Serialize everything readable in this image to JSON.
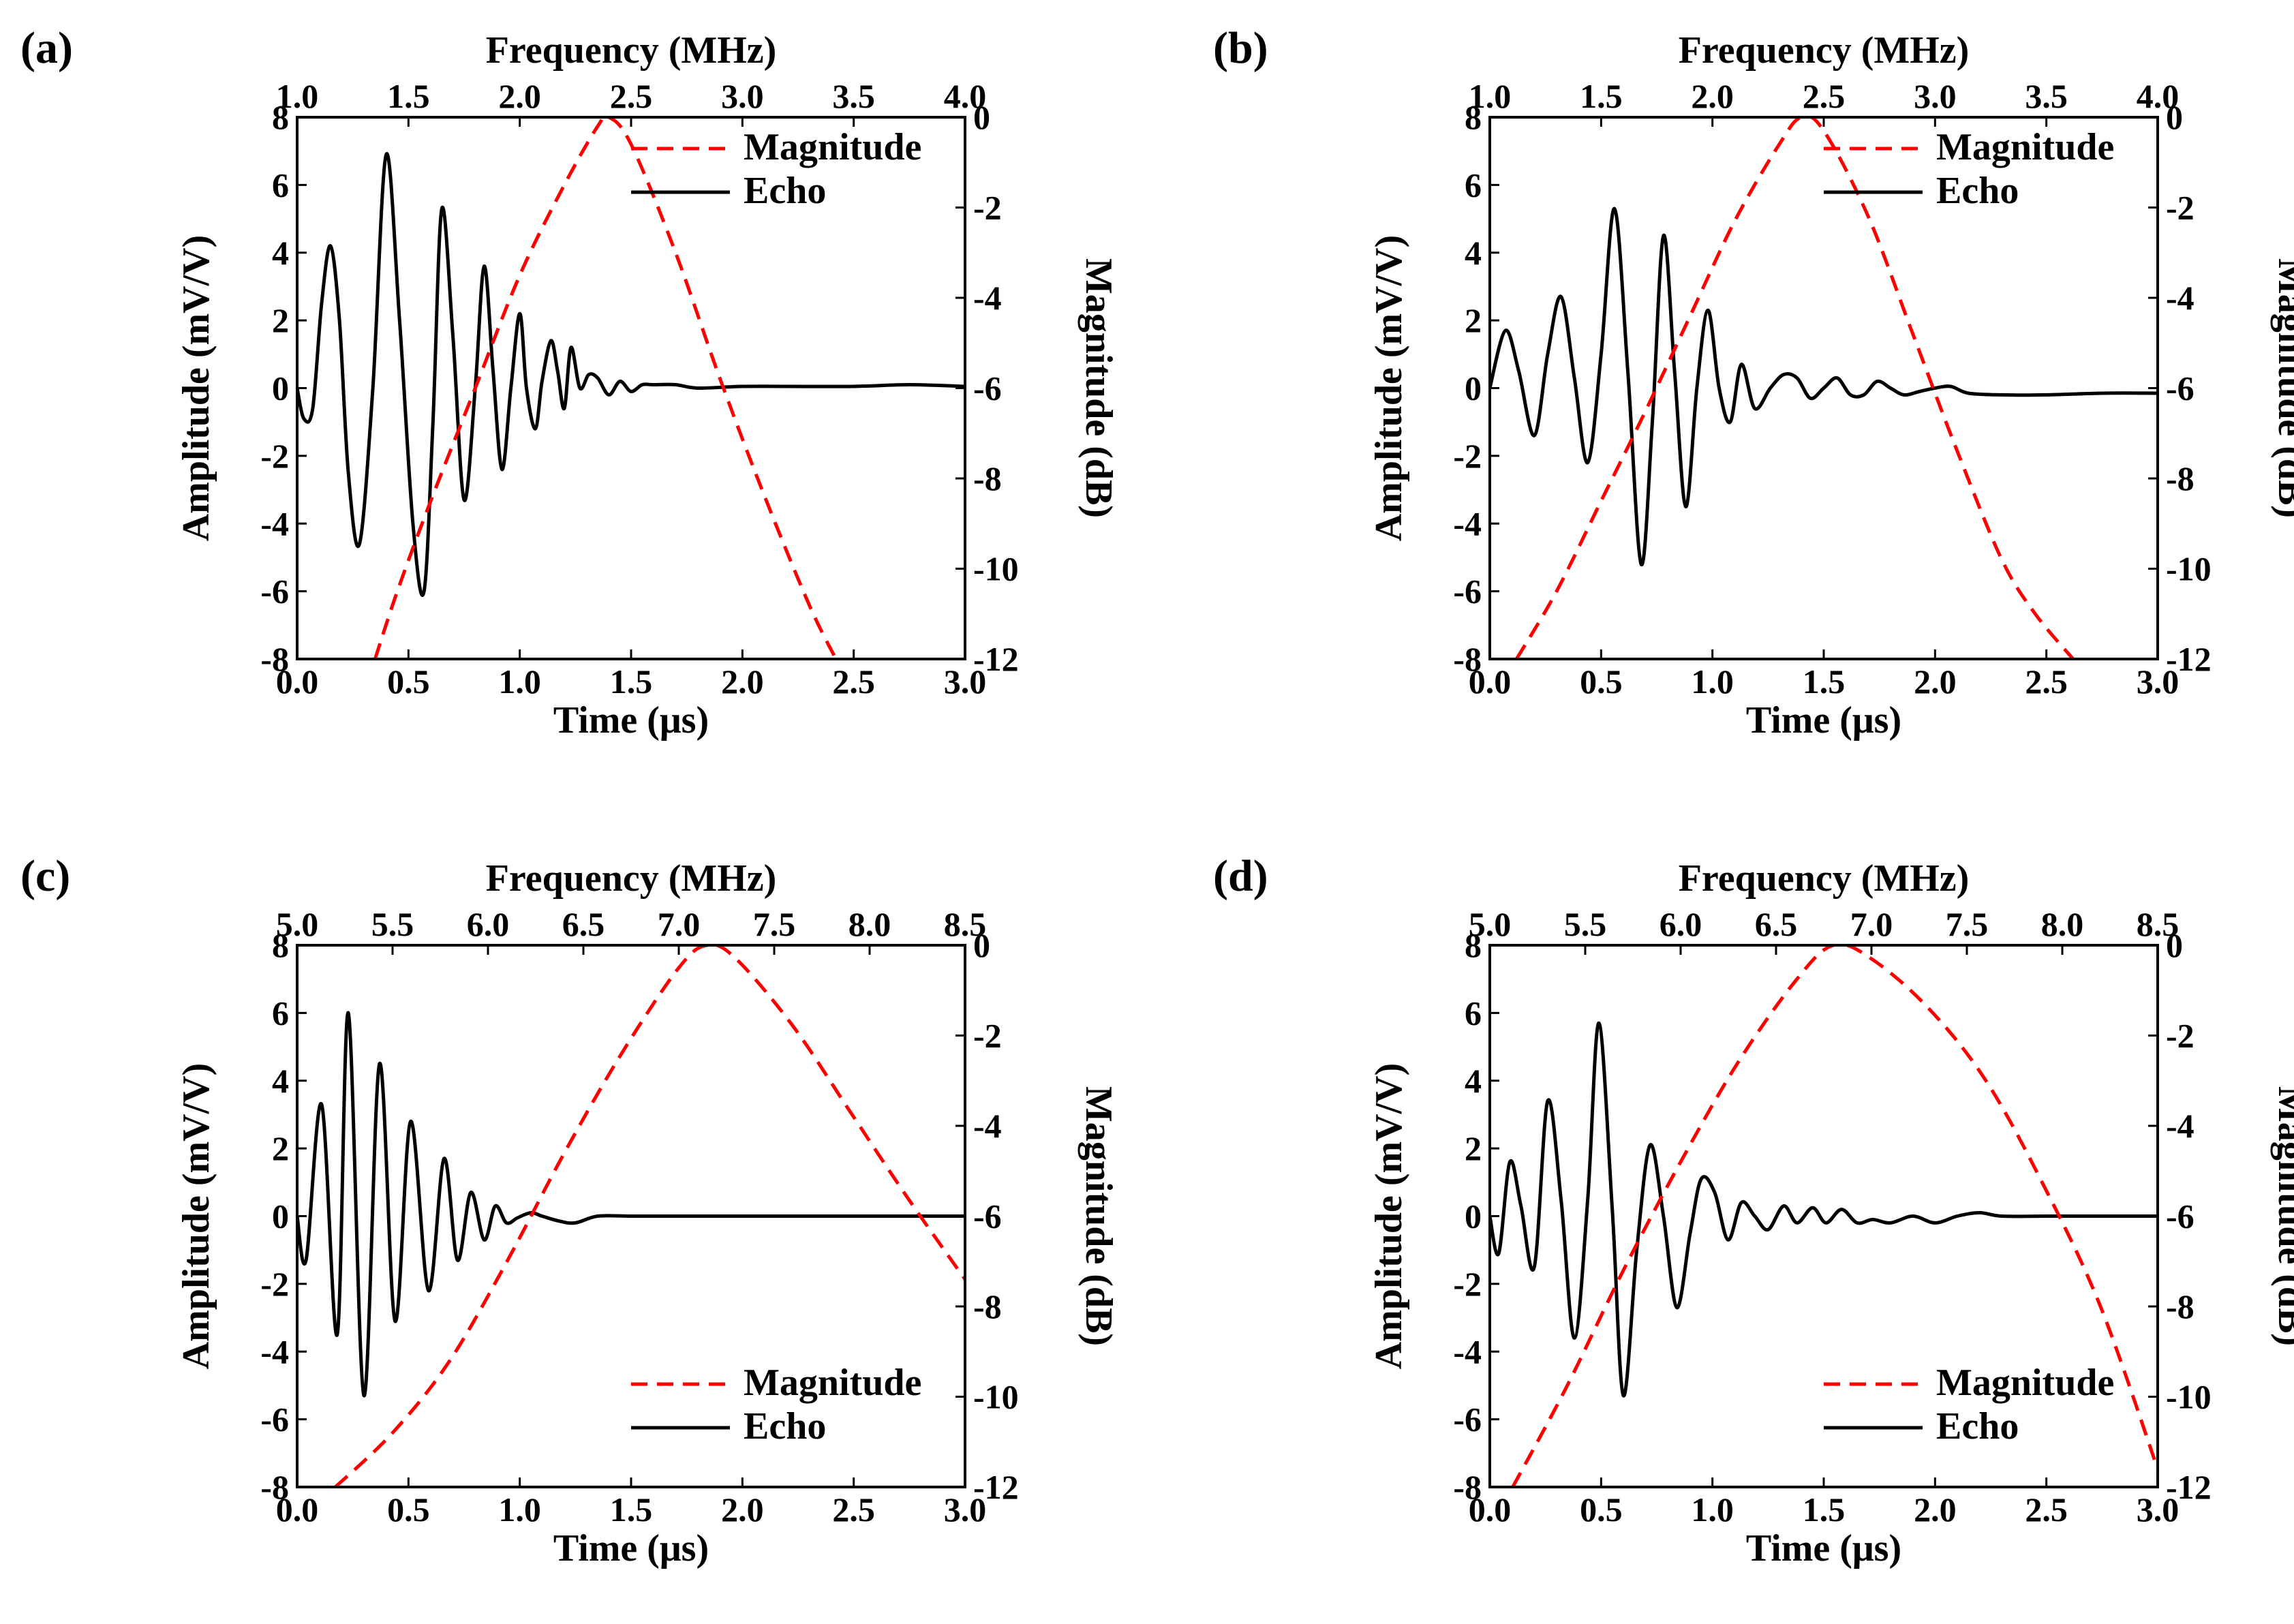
{
  "chart_data": [
    {
      "type": "line",
      "panel_label": "(a)",
      "xlabel": "Time (μs)",
      "ylabel": "Amplitude (mV/V)",
      "x2label": "Frequency (MHz)",
      "y2label": "Magnitude (dB)",
      "xlim": [
        0,
        3
      ],
      "ylim": [
        -8,
        8
      ],
      "x2lim": [
        1,
        4
      ],
      "y2lim": [
        -12,
        0
      ],
      "xticks": [
        "0.0",
        "0.5",
        "1.0",
        "1.5",
        "2.0",
        "2.5",
        "3.0"
      ],
      "yticks": [
        "-8",
        "-6",
        "-4",
        "-2",
        "0",
        "2",
        "4",
        "6",
        "8"
      ],
      "x2ticks": [
        "1.0",
        "1.5",
        "2.0",
        "2.5",
        "3.0",
        "3.5",
        "4.0"
      ],
      "y2ticks": [
        "-12",
        "-10",
        "-8",
        "-6",
        "-4",
        "-2",
        "0"
      ],
      "legend_position": "top-right",
      "series": [
        {
          "name": "Echo",
          "axis": "primary",
          "color": "#000000",
          "style": "solid",
          "x": [
            0.0,
            0.03,
            0.07,
            0.11,
            0.15,
            0.19,
            0.23,
            0.28,
            0.34,
            0.4,
            0.46,
            0.52,
            0.57,
            0.61,
            0.65,
            0.7,
            0.75,
            0.8,
            0.84,
            0.88,
            0.92,
            0.96,
            1.0,
            1.03,
            1.07,
            1.1,
            1.14,
            1.17,
            1.2,
            1.23,
            1.27,
            1.31,
            1.35,
            1.4,
            1.45,
            1.5,
            1.55,
            1.6,
            1.7,
            1.8,
            2.0,
            2.2,
            2.5,
            2.75,
            3.0
          ],
          "y": [
            0,
            -0.9,
            -0.6,
            2.5,
            4.2,
            2.0,
            -2.5,
            -4.6,
            0,
            6.9,
            2.0,
            -4.0,
            -6.0,
            -1.0,
            5.3,
            1.5,
            -3.3,
            0,
            3.6,
            0.5,
            -2.4,
            0,
            2.2,
            0,
            -1.2,
            0.2,
            1.4,
            0.5,
            -0.6,
            1.2,
            0,
            0.4,
            0.3,
            -0.2,
            0.2,
            -0.1,
            0.1,
            0.1,
            0.1,
            0,
            0.05,
            0.05,
            0.05,
            0.1,
            0.05
          ]
        },
        {
          "name": "Magnitude",
          "axis": "secondary",
          "color": "#ff0000",
          "style": "dashed",
          "x": [
            1.35,
            1.45,
            1.6,
            1.8,
            2.0,
            2.2,
            2.35,
            2.4,
            2.5,
            2.7,
            2.9,
            3.1,
            3.3,
            3.42
          ],
          "y": [
            -12,
            -10.5,
            -8.5,
            -6.0,
            -3.5,
            -1.5,
            -0.2,
            0,
            -0.6,
            -3.0,
            -5.8,
            -8.4,
            -10.8,
            -12
          ]
        }
      ]
    },
    {
      "type": "line",
      "panel_label": "(b)",
      "xlabel": "Time (μs)",
      "ylabel": "Amplitude (mV/V)",
      "x2label": "Frequency (MHz)",
      "y2label": "Magnitude (dB)",
      "xlim": [
        0,
        3
      ],
      "ylim": [
        -8,
        8
      ],
      "x2lim": [
        1,
        4
      ],
      "y2lim": [
        -12,
        0
      ],
      "xticks": [
        "0.0",
        "0.5",
        "1.0",
        "1.5",
        "2.0",
        "2.5",
        "3.0"
      ],
      "yticks": [
        "-8",
        "-6",
        "-4",
        "-2",
        "0",
        "2",
        "4",
        "6",
        "8"
      ],
      "x2ticks": [
        "1.0",
        "1.5",
        "2.0",
        "2.5",
        "3.0",
        "3.5",
        "4.0"
      ],
      "y2ticks": [
        "-12",
        "-10",
        "-8",
        "-6",
        "-4",
        "-2",
        "0"
      ],
      "legend_position": "top-right",
      "series": [
        {
          "name": "Echo",
          "axis": "primary",
          "color": "#000000",
          "style": "solid",
          "x": [
            0.0,
            0.07,
            0.13,
            0.2,
            0.26,
            0.32,
            0.38,
            0.44,
            0.5,
            0.56,
            0.62,
            0.68,
            0.73,
            0.78,
            0.83,
            0.88,
            0.93,
            0.98,
            1.03,
            1.08,
            1.13,
            1.19,
            1.26,
            1.32,
            1.38,
            1.44,
            1.5,
            1.56,
            1.62,
            1.68,
            1.74,
            1.8,
            1.86,
            1.93,
            2.0,
            2.07,
            2.15,
            2.3,
            2.5,
            2.75,
            3.0
          ],
          "y": [
            0,
            1.7,
            0.5,
            -1.4,
            1.0,
            2.7,
            0.3,
            -2.2,
            1.0,
            5.3,
            0.5,
            -5.2,
            -1.0,
            4.5,
            0.5,
            -3.5,
            0,
            2.3,
            0,
            -1.0,
            0.7,
            -0.6,
            0,
            0.4,
            0.3,
            -0.3,
            0,
            0.3,
            -0.2,
            -0.2,
            0.2,
            0,
            -0.2,
            -0.1,
            0,
            0.05,
            -0.15,
            -0.2,
            -0.2,
            -0.15,
            -0.15
          ]
        },
        {
          "name": "Magnitude",
          "axis": "secondary",
          "color": "#ff0000",
          "style": "dashed",
          "x": [
            1.12,
            1.3,
            1.5,
            1.7,
            1.9,
            2.1,
            2.3,
            2.4,
            2.5,
            2.7,
            2.9,
            3.1,
            3.3,
            3.45,
            3.62
          ],
          "y": [
            -12,
            -10.5,
            -8.5,
            -6.5,
            -4.4,
            -2.3,
            -0.6,
            0,
            -0.3,
            -2.2,
            -4.8,
            -7.4,
            -9.8,
            -11.0,
            -12
          ]
        }
      ]
    },
    {
      "type": "line",
      "panel_label": "(c)",
      "xlabel": "Time (μs)",
      "ylabel": "Amplitude (mV/V)",
      "x2label": "Frequency (MHz)",
      "y2label": "Magnitude (dB)",
      "xlim": [
        0,
        3
      ],
      "ylim": [
        -8,
        8
      ],
      "x2lim": [
        5,
        8.5
      ],
      "y2lim": [
        -12,
        0
      ],
      "xticks": [
        "0.0",
        "0.5",
        "1.0",
        "1.5",
        "2.0",
        "2.5",
        "3.0"
      ],
      "yticks": [
        "-8",
        "-6",
        "-4",
        "-2",
        "0",
        "2",
        "4",
        "6",
        "8"
      ],
      "x2ticks": [
        "5.0",
        "5.5",
        "6.0",
        "6.5",
        "7.0",
        "7.5",
        "8.0",
        "8.5"
      ],
      "y2ticks": [
        "-12",
        "-10",
        "-8",
        "-6",
        "-4",
        "-2",
        "0"
      ],
      "legend_position": "bottom-right",
      "series": [
        {
          "name": "Echo",
          "axis": "primary",
          "color": "#000000",
          "style": "solid",
          "x": [
            0.0,
            0.04,
            0.11,
            0.18,
            0.23,
            0.3,
            0.37,
            0.44,
            0.51,
            0.59,
            0.66,
            0.72,
            0.78,
            0.84,
            0.89,
            0.94,
            0.99,
            1.05,
            1.1,
            1.18,
            1.25,
            1.35,
            1.5,
            1.7,
            2.0,
            2.25,
            2.5,
            2.75,
            3.0
          ],
          "y": [
            0,
            -1.3,
            3.3,
            -3.5,
            6.0,
            -5.3,
            4.5,
            -3.1,
            2.8,
            -2.2,
            1.7,
            -1.3,
            0.7,
            -0.7,
            0.3,
            -0.2,
            -0.05,
            0.1,
            0,
            -0.15,
            -0.2,
            0,
            0,
            0,
            0,
            0,
            0,
            0,
            0
          ]
        },
        {
          "name": "Magnitude",
          "axis": "secondary",
          "color": "#ff0000",
          "style": "dashed",
          "x": [
            5.2,
            5.5,
            5.8,
            6.1,
            6.4,
            6.7,
            7.0,
            7.15,
            7.3,
            7.6,
            7.9,
            8.2,
            8.5
          ],
          "y": [
            -12,
            -10.8,
            -9.2,
            -7.0,
            -4.6,
            -2.4,
            -0.5,
            0,
            -0.3,
            -1.8,
            -3.7,
            -5.6,
            -7.4
          ]
        }
      ]
    },
    {
      "type": "line",
      "panel_label": "(d)",
      "xlabel": "Time (μs)",
      "ylabel": "Amplitude (mV/V)",
      "x2label": "Frequency (MHz)",
      "y2label": "Magnitude (dB)",
      "xlim": [
        0,
        3
      ],
      "ylim": [
        -8,
        8
      ],
      "x2lim": [
        5,
        8.5
      ],
      "y2lim": [
        -12,
        0
      ],
      "xticks": [
        "0.0",
        "0.5",
        "1.0",
        "1.5",
        "2.0",
        "2.5",
        "3.0"
      ],
      "yticks": [
        "-8",
        "-6",
        "-4",
        "-2",
        "0",
        "2",
        "4",
        "6",
        "8"
      ],
      "x2ticks": [
        "5.0",
        "5.5",
        "6.0",
        "6.5",
        "7.0",
        "7.5",
        "8.0",
        "8.5"
      ],
      "y2ticks": [
        "-12",
        "-10",
        "-8",
        "-6",
        "-4",
        "-2",
        "0"
      ],
      "legend_position": "bottom-right",
      "series": [
        {
          "name": "Echo",
          "axis": "primary",
          "color": "#000000",
          "style": "solid",
          "x": [
            0.0,
            0.04,
            0.09,
            0.14,
            0.2,
            0.26,
            0.32,
            0.38,
            0.44,
            0.49,
            0.55,
            0.6,
            0.66,
            0.72,
            0.78,
            0.84,
            0.9,
            0.95,
            1.01,
            1.07,
            1.13,
            1.19,
            1.25,
            1.32,
            1.38,
            1.45,
            1.51,
            1.58,
            1.65,
            1.72,
            1.8,
            1.9,
            2.0,
            2.1,
            2.2,
            2.3,
            2.5,
            2.75,
            3.0
          ],
          "y": [
            0,
            -1.1,
            1.6,
            0.3,
            -1.5,
            3.4,
            0.5,
            -3.6,
            0.5,
            5.7,
            0.2,
            -5.3,
            -1.0,
            2.1,
            0,
            -2.7,
            -0.5,
            1.1,
            0.7,
            -0.7,
            0.4,
            0,
            -0.4,
            0.3,
            -0.2,
            0.25,
            -0.2,
            0.2,
            -0.2,
            -0.1,
            -0.2,
            0,
            -0.2,
            0,
            0.1,
            0,
            0,
            0,
            0
          ]
        },
        {
          "name": "Magnitude",
          "axis": "secondary",
          "color": "#ff0000",
          "style": "dashed",
          "x": [
            5.12,
            5.4,
            5.7,
            6.0,
            6.3,
            6.6,
            6.8,
            7.0,
            7.3,
            7.6,
            7.9,
            8.2,
            8.5
          ],
          "y": [
            -12,
            -9.8,
            -7.2,
            -4.8,
            -2.6,
            -0.8,
            0,
            -0.3,
            -1.4,
            -3.0,
            -5.3,
            -8.0,
            -11.6
          ]
        }
      ]
    }
  ]
}
